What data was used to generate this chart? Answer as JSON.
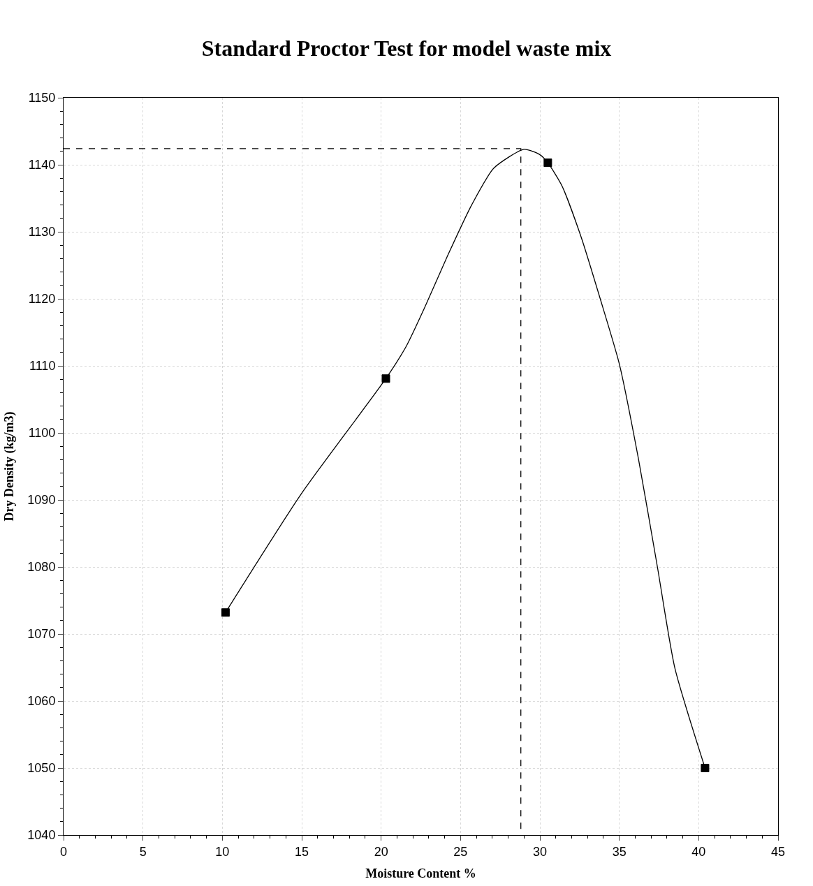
{
  "chart_data": {
    "type": "scatter",
    "title": "Standard Proctor Test for model waste mix",
    "xlabel": "Moisture Content %",
    "ylabel": "Dry Density (kg/m3)",
    "x": [
      10.2,
      20.3,
      30.5,
      40.4
    ],
    "series": [
      {
        "color": "#000000",
        "marker": "square",
        "values": [
          1073.2,
          1108.1,
          1140.3,
          1050
        ]
      },
      {
        "type": "line",
        "color": "#000000",
        "marker": "none",
        "line_style": "solid",
        "x": [
          10.2,
          15,
          20.3,
          21.6,
          22.8,
          24.2,
          25.7,
          27.1,
          29.0,
          30.0,
          30.5,
          31.4,
          32.6,
          33.8,
          35.0,
          36.2,
          37.4,
          38.5,
          40.4
        ],
        "values": [
          1073.2,
          1091,
          1108.1,
          1113,
          1119,
          1126.5,
          1134,
          1139.5,
          1142.3,
          1141.5,
          1140.3,
          1136.8,
          1129.2,
          1120,
          1110.3,
          1096.2,
          1080,
          1064.9,
          1050
        ]
      },
      {
        "type": "line",
        "color": "#000000",
        "marker": "none",
        "line_style": "dashed",
        "x": [
          0,
          28.8,
          28.8
        ],
        "values": [
          1142.4,
          1142.4,
          1040
        ]
      }
    ],
    "xlim": [
      0,
      45
    ],
    "xticks": [
      0,
      5,
      10,
      15,
      20,
      25,
      30,
      35,
      40,
      45
    ],
    "ylim": [
      1040,
      1150
    ],
    "yticks": [
      1040,
      1050,
      1060,
      1070,
      1080,
      1090,
      1100,
      1110,
      1120,
      1130,
      1140,
      1150
    ],
    "grid": true
  }
}
